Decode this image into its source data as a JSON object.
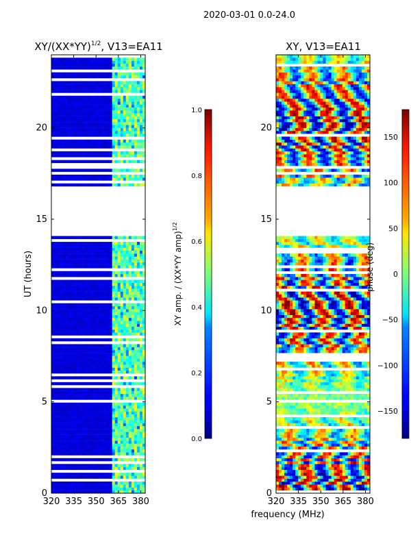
{
  "suptitle": "2020-03-01 0.0-24.0",
  "xlabel": "frequency (MHz)",
  "chart_data": [
    {
      "type": "heatmap",
      "title": "XY/(XX*YY)",
      "title_exponent": "1/2",
      "title_suffix": ", V13=EA11",
      "xlim": [
        320,
        383
      ],
      "xticks": [
        320,
        335,
        350,
        365,
        380
      ],
      "ylim": [
        0,
        24
      ],
      "yticks": [
        0,
        5,
        10,
        15,
        20
      ],
      "ylabel": "UT (hours)",
      "flagged_gap_hours": [
        14.15,
        16.7
      ],
      "signal_band_mhz": [
        360,
        383
      ],
      "colorbar": {
        "label": "XY amp. / (XX*YY amp)",
        "label_exponent": "1/2",
        "range": [
          0.0,
          1.0
        ],
        "ticks": [
          "0.0",
          "0.2",
          "0.4",
          "0.6",
          "0.8",
          "1.0"
        ],
        "colormap": "jet"
      }
    },
    {
      "type": "heatmap",
      "title": "XY, V13=EA11",
      "xlim": [
        320,
        383
      ],
      "xticks": [
        320,
        335,
        350,
        365,
        380
      ],
      "ylim": [
        0,
        24
      ],
      "yticks": [
        0,
        5,
        10,
        15,
        20
      ],
      "flagged_gap_hours": [
        14.15,
        16.7
      ],
      "colorbar": {
        "label": "phase (deg)",
        "range": [
          -180,
          180
        ],
        "ticks": [
          "150",
          "100",
          "50",
          "0",
          "−50",
          "−100",
          "−150"
        ],
        "tick_values": [
          150,
          100,
          50,
          0,
          -50,
          -100,
          -150
        ],
        "colormap": "jet"
      }
    }
  ]
}
